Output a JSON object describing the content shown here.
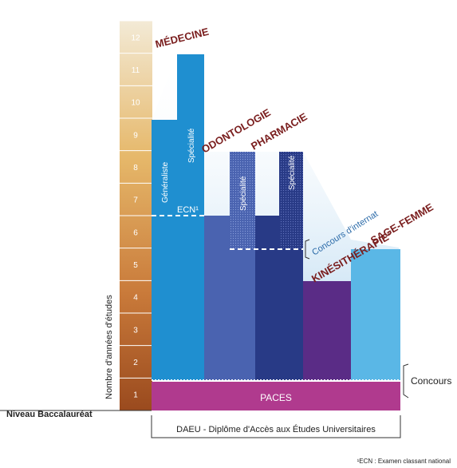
{
  "scale": {
    "axis_label": "Nombre d'années d'études",
    "levels": [
      "1",
      "2",
      "3",
      "4",
      "5",
      "6",
      "7",
      "8",
      "9",
      "10",
      "11",
      "12"
    ],
    "baseline_label": "Niveau Baccalauréat"
  },
  "columns": {
    "medecine": "MÉDECINE",
    "odontologie": "ODONTOLOGIE",
    "pharmacie": "PHARMACIE",
    "kinesitherapie": "KINÉSITHÉRAPIE²",
    "sage_femme": "SAGE-FEMME"
  },
  "labels": {
    "generaliste": "Généraliste",
    "specialite": "Spécialité",
    "ecn": "ECN¹",
    "concours_internat": "Concours d'internat",
    "paces": "PACES",
    "concours": "Concours",
    "daeu": "DAEU - Diplôme d'Accès aux Études Universitaires",
    "footnote": "¹ECN : Examen classant national"
  },
  "colors": {
    "medecine": "#1f8fd0",
    "odontologie": "#4a63b0",
    "pharmacie": "#283a86",
    "kinesitherapie": "#5a2c86",
    "sage_femme": "#5ab7e6",
    "paces": "#b03a8e",
    "scale_top": "#f2e6cc",
    "scale_bottom": "#9a4a1e",
    "titles": "#7a1e1e"
  }
}
